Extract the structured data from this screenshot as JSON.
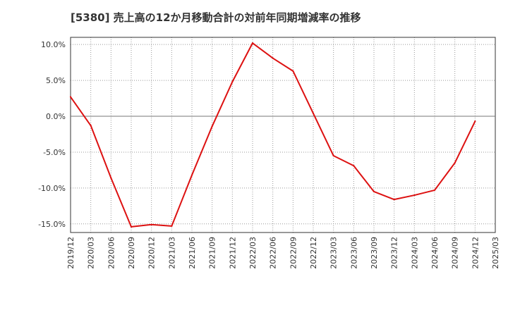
{
  "chart_data": {
    "type": "line",
    "title": "[5380]  売上高の12か月移動合計の対前年同期増減率の推移",
    "xlabel": "",
    "ylabel": "",
    "ylim": [
      -16.2,
      11.0
    ],
    "y_ticks": [
      10.0,
      5.0,
      0.0,
      -5.0,
      -10.0,
      -15.0
    ],
    "y_tick_labels": [
      "10.0%",
      "5.0%",
      "0.0%",
      "-5.0%",
      "-10.0%",
      "-15.0%"
    ],
    "categories": [
      "2019/12",
      "2020/03",
      "2020/06",
      "2020/09",
      "2020/12",
      "2021/03",
      "2021/06",
      "2021/09",
      "2021/12",
      "2022/03",
      "2022/06",
      "2022/09",
      "2022/12",
      "2023/03",
      "2023/06",
      "2023/09",
      "2023/12",
      "2024/03",
      "2024/06",
      "2024/09",
      "2024/12",
      "2025/03"
    ],
    "series": [
      {
        "name": "売上高増減率",
        "color": "#dd1111",
        "values": [
          2.7,
          -1.3,
          -8.6,
          -15.4,
          -15.1,
          -15.3,
          -8.2,
          -1.4,
          4.8,
          10.2,
          8.1,
          6.3,
          0.4,
          -5.5,
          -6.9,
          -10.5,
          -11.6,
          -11.0,
          -10.3,
          -6.5,
          -0.7,
          null
        ]
      }
    ],
    "grid": true,
    "legend": "none"
  }
}
